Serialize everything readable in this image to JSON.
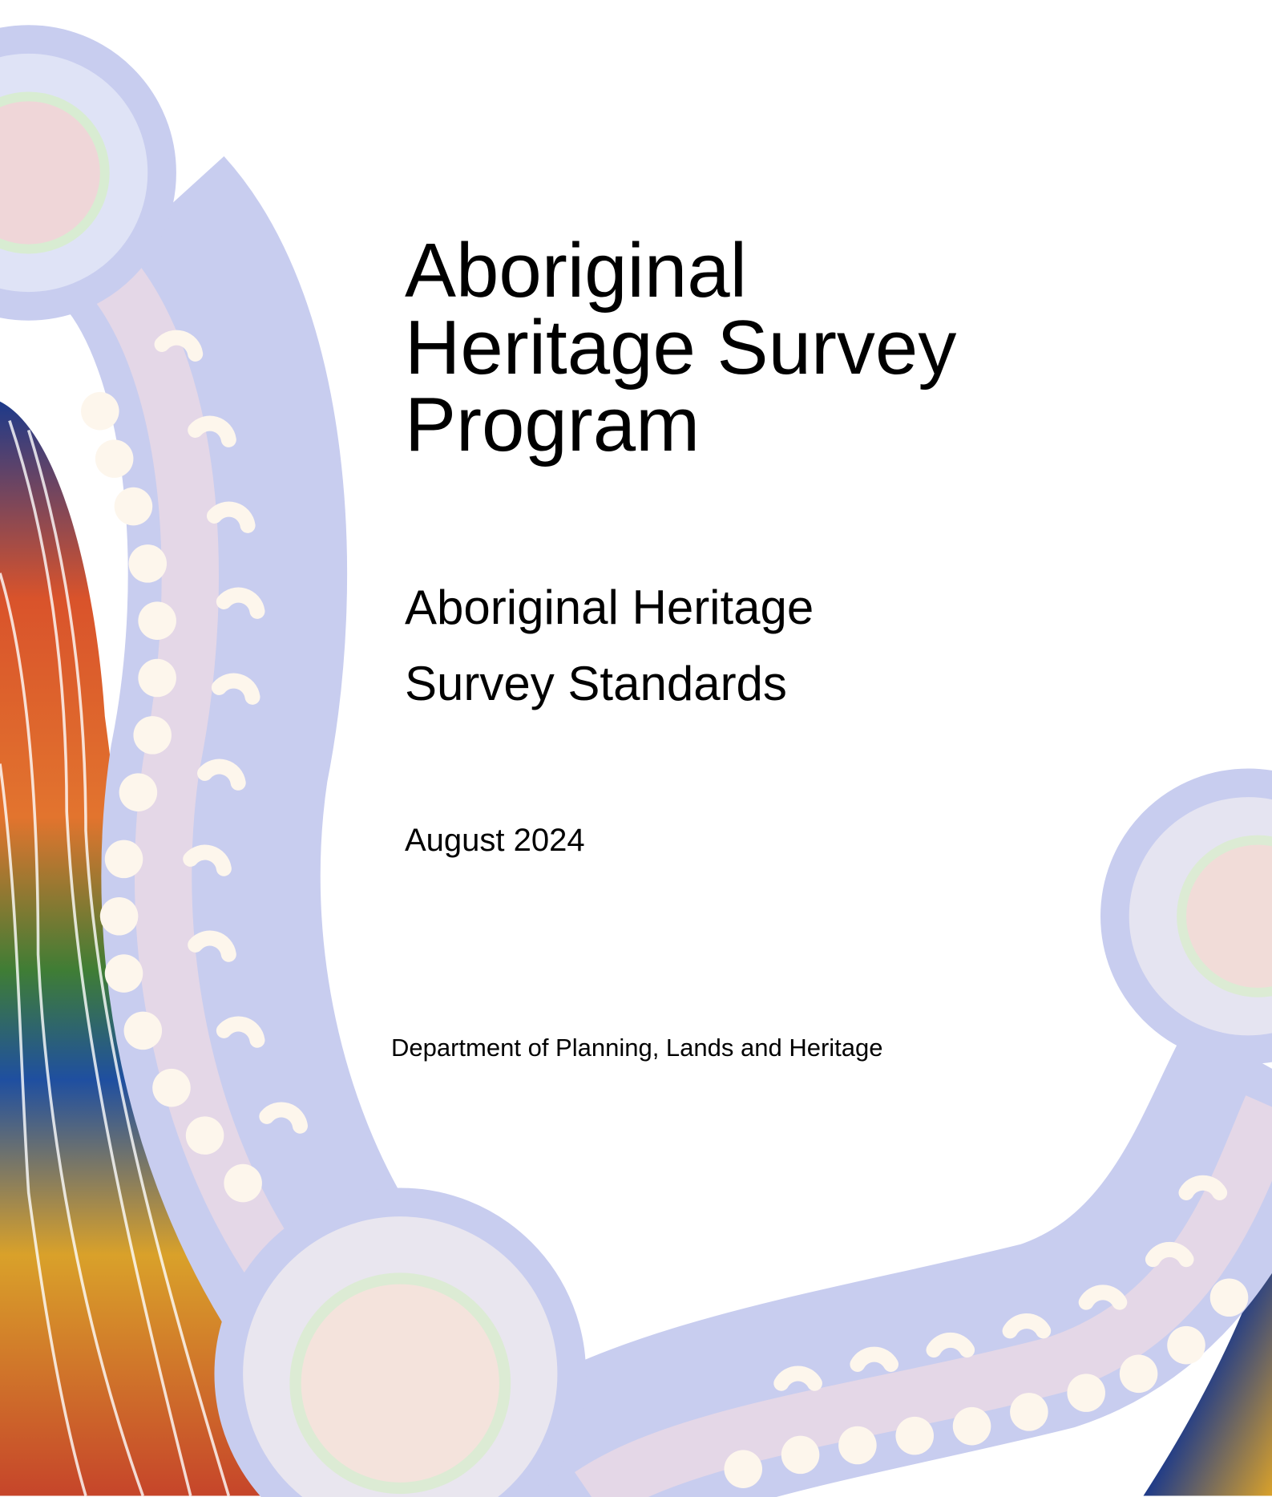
{
  "title_lines": [
    "Aboriginal",
    "Heritage Survey",
    "Program"
  ],
  "subtitle_lines": [
    "Aboriginal Heritage",
    "Survey Standards"
  ],
  "date": "August 2024",
  "department": "Department of Planning, Lands and Heritage"
}
